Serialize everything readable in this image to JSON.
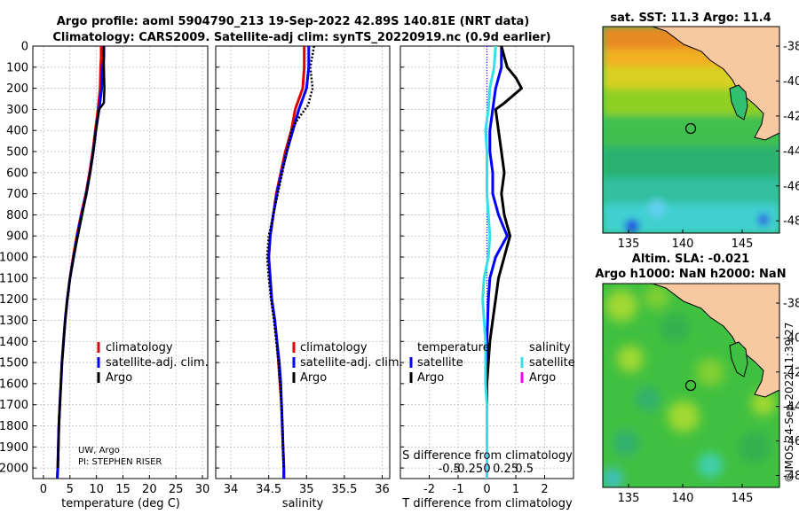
{
  "title": {
    "line1": "Argo profile: aoml 5904790_213 19-Sep-2022 42.89S 140.81E (NRT data)",
    "line2": "Climatology: CARS2009. Satellite-adj clim: synTS_20220919.nc (0.9d earlier)"
  },
  "credits": {
    "line1": "UW, Argo",
    "line2": "PI: STEPHEN RISER"
  },
  "imos_stamp": "©IMOS 24-Sep-2022 11:39:27",
  "colors": {
    "climatology": "#e00000",
    "satellite": "#0000ff",
    "argo": "#000000",
    "sat_diff": "#33e0e8",
    "argo_sal_diff": "#ff00ff",
    "grid": "#bfbfbf"
  },
  "chart_data": [
    {
      "type": "line",
      "name": "temperature",
      "xlabel": "temperature (deg C)",
      "ylabel": "",
      "xlim": [
        -2,
        31
      ],
      "ylim": [
        2050,
        0
      ],
      "xticks": [
        0,
        5,
        10,
        15,
        20,
        25,
        30
      ],
      "yticks": [
        0,
        100,
        200,
        300,
        400,
        500,
        600,
        700,
        800,
        900,
        1000,
        1100,
        1200,
        1300,
        1400,
        1500,
        1600,
        1700,
        1800,
        1900,
        2000
      ],
      "legend": [
        "climatology",
        "satellite-adj. clim.",
        "Argo"
      ],
      "series": [
        {
          "name": "climatology",
          "color": "#e00000",
          "points": [
            [
              10.9,
              0
            ],
            [
              10.9,
              50
            ],
            [
              10.8,
              100
            ],
            [
              10.7,
              200
            ],
            [
              10.3,
              300
            ],
            [
              9.8,
              400
            ],
            [
              9.3,
              500
            ],
            [
              8.7,
              600
            ],
            [
              8.0,
              700
            ],
            [
              7.1,
              800
            ],
            [
              6.3,
              900
            ],
            [
              5.6,
              1000
            ],
            [
              5.0,
              1100
            ],
            [
              4.5,
              1200
            ],
            [
              4.1,
              1300
            ],
            [
              3.8,
              1400
            ],
            [
              3.5,
              1500
            ],
            [
              3.3,
              1600
            ],
            [
              3.1,
              1700
            ],
            [
              2.9,
              1800
            ],
            [
              2.8,
              1900
            ],
            [
              2.7,
              2000
            ],
            [
              2.6,
              2050
            ]
          ]
        },
        {
          "name": "satellite-adj. clim.",
          "color": "#0000ff",
          "points": [
            [
              11.4,
              0
            ],
            [
              11.4,
              50
            ],
            [
              11.2,
              100
            ],
            [
              11.0,
              200
            ],
            [
              10.5,
              300
            ],
            [
              9.9,
              400
            ],
            [
              9.4,
              500
            ],
            [
              8.8,
              600
            ],
            [
              8.1,
              700
            ],
            [
              7.2,
              800
            ],
            [
              6.4,
              900
            ],
            [
              5.7,
              1000
            ],
            [
              5.0,
              1100
            ],
            [
              4.5,
              1200
            ],
            [
              4.1,
              1300
            ],
            [
              3.8,
              1400
            ],
            [
              3.5,
              1500
            ],
            [
              3.3,
              1600
            ],
            [
              3.1,
              1700
            ],
            [
              2.9,
              1800
            ],
            [
              2.8,
              1900
            ],
            [
              2.7,
              2000
            ],
            [
              2.6,
              2050
            ]
          ]
        },
        {
          "name": "Argo",
          "color": "#000000",
          "points": [
            [
              11.4,
              0
            ],
            [
              11.4,
              100
            ],
            [
              11.5,
              200
            ],
            [
              11.4,
              270
            ],
            [
              10.5,
              300
            ],
            [
              9.9,
              400
            ],
            [
              9.4,
              500
            ],
            [
              8.8,
              600
            ],
            [
              8.1,
              700
            ],
            [
              7.3,
              800
            ],
            [
              6.5,
              900
            ],
            [
              5.7,
              1000
            ],
            [
              5.0,
              1100
            ],
            [
              4.5,
              1200
            ],
            [
              4.1,
              1300
            ],
            [
              3.8,
              1400
            ],
            [
              3.5,
              1500
            ],
            [
              3.3,
              1600
            ],
            [
              3.1,
              1700
            ],
            [
              2.9,
              1800
            ],
            [
              2.8,
              1900
            ],
            [
              2.7,
              2000
            ]
          ]
        }
      ]
    },
    {
      "type": "line",
      "name": "salinity",
      "xlabel": "salinity",
      "ylabel": "",
      "xlim": [
        33.8,
        36.1
      ],
      "ylim": [
        2050,
        0
      ],
      "xticks": [
        34,
        34.5,
        35,
        35.5,
        36
      ],
      "xticklabels": [
        "34",
        "34.5",
        "35",
        "35.5",
        "36"
      ],
      "yticks": [
        0,
        100,
        200,
        300,
        400,
        500,
        600,
        700,
        800,
        900,
        1000,
        1100,
        1200,
        1300,
        1400,
        1500,
        1600,
        1700,
        1800,
        1900,
        2000
      ],
      "legend": [
        "climatology",
        "satellite-adj. clim.",
        "Argo"
      ],
      "series": [
        {
          "name": "climatology",
          "color": "#e00000",
          "points": [
            [
              34.97,
              0
            ],
            [
              34.97,
              100
            ],
            [
              34.95,
              200
            ],
            [
              34.85,
              300
            ],
            [
              34.8,
              400
            ],
            [
              34.72,
              500
            ],
            [
              34.66,
              600
            ],
            [
              34.6,
              700
            ],
            [
              34.56,
              800
            ],
            [
              34.52,
              900
            ],
            [
              34.5,
              1000
            ],
            [
              34.52,
              1100
            ],
            [
              34.54,
              1200
            ],
            [
              34.58,
              1300
            ],
            [
              34.61,
              1400
            ],
            [
              34.63,
              1500
            ],
            [
              34.65,
              1600
            ],
            [
              34.67,
              1700
            ],
            [
              34.68,
              1800
            ],
            [
              34.69,
              1900
            ],
            [
              34.7,
              2000
            ],
            [
              34.7,
              2050
            ]
          ]
        },
        {
          "name": "satellite-adj. clim.",
          "color": "#0000ff",
          "points": [
            [
              35.03,
              0
            ],
            [
              35.03,
              100
            ],
            [
              35.0,
              200
            ],
            [
              34.9,
              300
            ],
            [
              34.82,
              400
            ],
            [
              34.74,
              500
            ],
            [
              34.67,
              600
            ],
            [
              34.61,
              700
            ],
            [
              34.56,
              800
            ],
            [
              34.52,
              900
            ],
            [
              34.5,
              1000
            ],
            [
              34.52,
              1100
            ],
            [
              34.54,
              1200
            ],
            [
              34.58,
              1300
            ],
            [
              34.61,
              1400
            ],
            [
              34.64,
              1500
            ],
            [
              34.66,
              1600
            ],
            [
              34.67,
              1700
            ],
            [
              34.68,
              1800
            ],
            [
              34.69,
              1900
            ],
            [
              34.7,
              2000
            ],
            [
              34.7,
              2050
            ]
          ]
        },
        {
          "name": "Argo",
          "color": "#000000",
          "points": [
            [
              35.1,
              0
            ],
            [
              35.05,
              100
            ],
            [
              35.08,
              200
            ],
            [
              35.02,
              280
            ],
            [
              34.88,
              350
            ],
            [
              34.8,
              400
            ],
            [
              34.74,
              500
            ],
            [
              34.68,
              600
            ],
            [
              34.62,
              700
            ],
            [
              34.56,
              800
            ],
            [
              34.5,
              900
            ],
            [
              34.48,
              1000
            ],
            [
              34.5,
              1100
            ],
            [
              34.53,
              1200
            ],
            [
              34.57,
              1300
            ],
            [
              34.6,
              1400
            ],
            [
              34.63,
              1500
            ],
            [
              34.65,
              1600
            ],
            [
              34.67,
              1700
            ],
            [
              34.68,
              1800
            ],
            [
              34.69,
              1900
            ],
            [
              34.7,
              2000
            ]
          ]
        }
      ]
    },
    {
      "type": "line",
      "name": "difference from climatology",
      "xlabel": "T difference from climatology",
      "xlabel2": "S difference from climatology",
      "xlim": [
        -3,
        3
      ],
      "ylim": [
        2050,
        0
      ],
      "xticks": [
        -2,
        -1,
        0,
        1,
        2
      ],
      "xticklabels": [
        "-2",
        "-1",
        "0",
        "1",
        "2"
      ],
      "s_ticklabels": [
        "-0.5",
        "-0.25",
        "0",
        "0.25",
        "0.5"
      ],
      "yticks": [
        0,
        100,
        200,
        300,
        400,
        500,
        600,
        700,
        800,
        900,
        1000,
        1100,
        1200,
        1300,
        1400,
        1500,
        1600,
        1700,
        1800,
        1900,
        2000
      ],
      "legend_temperature_title": "temperature",
      "legend_salinity_title": "salinity",
      "legend_temperature": [
        "satellite",
        "Argo"
      ],
      "legend_salinity": [
        "satellite",
        "Argo"
      ],
      "series": [
        {
          "name": "T satellite",
          "color": "#0000ff",
          "points": [
            [
              0.5,
              0
            ],
            [
              0.5,
              100
            ],
            [
              0.3,
              200
            ],
            [
              0.2,
              300
            ],
            [
              0.1,
              400
            ],
            [
              0.1,
              500
            ],
            [
              0.2,
              600
            ],
            [
              0.2,
              700
            ],
            [
              0.4,
              800
            ],
            [
              0.7,
              900
            ],
            [
              0.3,
              1000
            ],
            [
              0.1,
              1100
            ],
            [
              0.05,
              1200
            ],
            [
              0,
              1400
            ],
            [
              0,
              2050
            ]
          ]
        },
        {
          "name": "T Argo",
          "color": "#000000",
          "points": [
            [
              0.5,
              0
            ],
            [
              0.6,
              50
            ],
            [
              0.7,
              100
            ],
            [
              1.0,
              150
            ],
            [
              1.2,
              200
            ],
            [
              0.6,
              270
            ],
            [
              0.3,
              300
            ],
            [
              0.4,
              400
            ],
            [
              0.5,
              500
            ],
            [
              0.6,
              600
            ],
            [
              0.5,
              700
            ],
            [
              0.6,
              800
            ],
            [
              0.8,
              900
            ],
            [
              0.6,
              1000
            ],
            [
              0.4,
              1100
            ],
            [
              0.3,
              1200
            ],
            [
              0.2,
              1300
            ],
            [
              0.1,
              1400
            ],
            [
              0.05,
              1500
            ],
            [
              0,
              1600
            ],
            [
              0,
              2000
            ]
          ]
        },
        {
          "name": "S satellite",
          "color": "#33e0e8",
          "points": [
            [
              0.3,
              0
            ],
            [
              0.25,
              100
            ],
            [
              0.1,
              200
            ],
            [
              0.05,
              300
            ],
            [
              -0.05,
              400
            ],
            [
              0,
              500
            ],
            [
              0,
              700
            ],
            [
              0.05,
              800
            ],
            [
              0.1,
              900
            ],
            [
              0.05,
              1000
            ],
            [
              -0.1,
              1100
            ],
            [
              -0.15,
              1200
            ],
            [
              -0.1,
              1300
            ],
            [
              -0.05,
              1400
            ],
            [
              -0.05,
              1500
            ],
            [
              -0.05,
              1600
            ],
            [
              0,
              1700
            ],
            [
              0,
              2050
            ]
          ]
        }
      ]
    }
  ],
  "maps": [
    {
      "title": "sat. SST: 11.3 Argo: 11.4",
      "xticks": [
        "135",
        "140",
        "145"
      ],
      "yticks": [
        "-38",
        "-40",
        "-42",
        "-44",
        "-46",
        "-48"
      ]
    },
    {
      "title1": "Altim. SLA: -0.021",
      "title2": "Argo h1000: NaN h2000: NaN",
      "xticks": [
        "135",
        "140",
        "145"
      ],
      "yticks": [
        "-38",
        "-40",
        "-42",
        "-44",
        "-46",
        "-48"
      ]
    }
  ]
}
